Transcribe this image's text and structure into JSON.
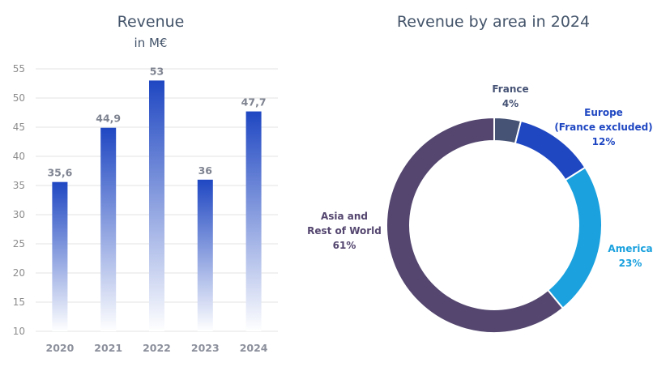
{
  "chart_data": [
    {
      "type": "bar",
      "title": "Revenue",
      "subtitle": "in M€",
      "xlabel": "",
      "ylabel": "",
      "categories": [
        "2020",
        "2021",
        "2022",
        "2023",
        "2024"
      ],
      "values": [
        35.6,
        44.9,
        53,
        36,
        47.7
      ],
      "value_labels": [
        "35,6",
        "44,9",
        "53",
        "36",
        "47,7"
      ],
      "ylim": [
        10,
        55
      ],
      "yticks": [
        10,
        15,
        20,
        25,
        30,
        35,
        40,
        45,
        50,
        55
      ],
      "grid": true,
      "bar_color_top": "#1f47c2",
      "bar_color_bottom": "#ffffff"
    },
    {
      "type": "pie",
      "style": "donut",
      "title": "Revenue by area in 2024",
      "slices": [
        {
          "name": "France",
          "label_lines": [
            "France",
            "4%"
          ],
          "value": 4,
          "color": "#465375",
          "label_color": "#465375"
        },
        {
          "name": "Europe (France excluded)",
          "label_lines": [
            "Europe",
            "(France excluded)",
            "12%"
          ],
          "value": 12,
          "color": "#1f47c2",
          "label_color": "#1f47c2"
        },
        {
          "name": "America",
          "label_lines": [
            "America",
            "23%"
          ],
          "value": 23,
          "color": "#1aa1de",
          "label_color": "#1aa1de"
        },
        {
          "name": "Asia and Rest of World",
          "label_lines": [
            "Asia and",
            "Rest of World",
            "61%"
          ],
          "value": 61,
          "color": "#54466f",
          "label_color": "#54466f"
        }
      ]
    }
  ]
}
